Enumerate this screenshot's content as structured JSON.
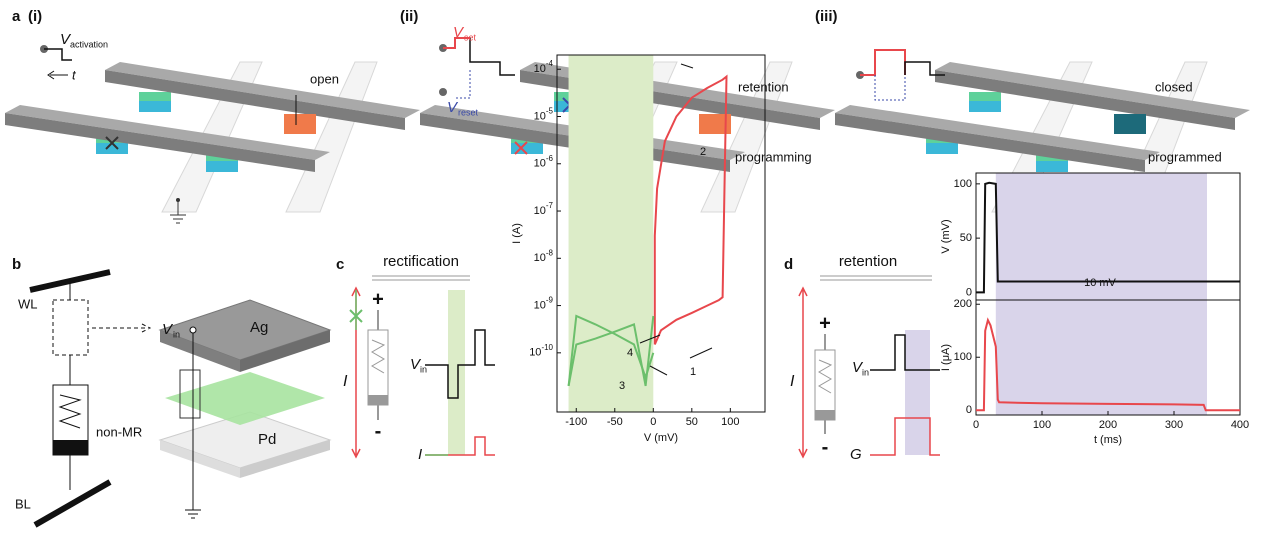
{
  "panel_a": {
    "label": "a",
    "subpanels": [
      "(i)",
      "(ii)",
      "(iii)"
    ],
    "v_activation": {
      "symbol": "V",
      "subscript": "activation"
    },
    "time": "t",
    "open": "open",
    "v_set": {
      "symbol": "V",
      "subscript": "set"
    },
    "v_reset": {
      "symbol": "V",
      "subscript": "reset"
    },
    "retention": "retention",
    "programming": "programming",
    "closed": "closed",
    "programmed": "programmed"
  },
  "panel_b": {
    "label": "b",
    "wl": "WL",
    "bl": "BL",
    "non_mr": "non-MR",
    "v_in": {
      "symbol": "V",
      "subscript": "in"
    },
    "top": "Ag",
    "bottom": "Pd"
  },
  "panel_c": {
    "label": "c",
    "title": "rectification",
    "plus": "+",
    "minus": "-",
    "current": "I",
    "v_in": {
      "symbol": "V",
      "subscript": "in"
    },
    "pulse_current": "I",
    "chart": {
      "type": "line",
      "log_y": true,
      "xlabel": "V (mV)",
      "ylabel": "I (A)",
      "xlim": [
        -125,
        145
      ],
      "ylim": [
        5.6e-12,
        0.0002
      ],
      "xticks": [
        -100,
        -50,
        0,
        50,
        100
      ],
      "yticks": [
        {
          "value": 1e-10,
          "label": "10^-10"
        },
        {
          "value": 1e-09,
          "label": "10^-9"
        },
        {
          "value": 1e-08,
          "label": "10^-8"
        },
        {
          "value": 1e-07,
          "label": "10^-7"
        },
        {
          "value": 1e-06,
          "label": "10^-6"
        },
        {
          "value": 1e-05,
          "label": "10^-5"
        },
        {
          "value": 0.0001,
          "label": "10^-4"
        }
      ],
      "shade": [
        -110,
        0
      ],
      "shade_color": "#dcecc8",
      "series": [
        {
          "color": "#e8474c",
          "x": [
            2,
            10,
            30,
            50,
            70,
            85,
            90,
            93,
            95,
            90,
            70,
            50,
            30,
            15,
            5,
            2,
            2
          ],
          "values": [
            1.5e-10,
            3e-10,
            5e-10,
            7e-10,
            1e-09,
            1.3e-09,
            1.5e-09,
            1e-06,
            7e-05,
            6e-05,
            4e-05,
            2.5e-05,
            1e-05,
            3e-06,
            3e-07,
            3e-08,
            1.5e-10
          ]
        },
        {
          "color": "#6cbf6c",
          "x": [
            -110,
            -100,
            -75,
            -50,
            -25,
            -10,
            0
          ],
          "values": [
            2e-11,
            6e-10,
            4e-10,
            2.5e-10,
            1.5e-10,
            3e-11,
            1e-10
          ]
        },
        {
          "color": "#6cbf6c",
          "x": [
            -110,
            -100,
            -75,
            -50,
            -25,
            -10,
            0
          ],
          "values": [
            2e-11,
            1.5e-10,
            2e-10,
            2.8e-10,
            4e-10,
            2e-11,
            6e-10
          ]
        }
      ],
      "annotations": [
        "1",
        "2",
        "3",
        "4"
      ]
    }
  },
  "panel_d": {
    "label": "d",
    "title": "retention",
    "plus": "+",
    "minus": "-",
    "current": "I",
    "v_in": {
      "symbol": "V",
      "subscript": "in"
    },
    "conductance": "G",
    "chart": {
      "type": "line",
      "xlabel": "t (ms)",
      "xlim": [
        0,
        400
      ],
      "xticks": [
        0,
        100,
        200,
        300,
        400
      ],
      "shade": [
        30,
        350
      ],
      "shade_color": "#d9d4ea",
      "subplots": [
        {
          "ylabel": "V (mV)",
          "ylim": [
            -7,
            110
          ],
          "yticks": [
            0,
            50,
            100
          ],
          "annotation": "10 mV",
          "series": [
            {
              "color": "#111111",
              "x": [
                0,
                12,
                14,
                20,
                30,
                33,
                35,
                100,
                200,
                300,
                400
              ],
              "values": [
                0,
                0,
                100,
                101,
                100,
                10,
                10,
                10,
                10,
                10,
                10
              ]
            }
          ]
        },
        {
          "ylabel": "I (μA)",
          "ylim": [
            -9,
            208
          ],
          "yticks": [
            0,
            100,
            200
          ],
          "series": [
            {
              "color": "#e8474c",
              "x": [
                0,
                12,
                14,
                18,
                22,
                30,
                33,
                35,
                100,
                200,
                300,
                345,
                348,
                400
              ],
              "values": [
                0,
                0,
                150,
                170,
                160,
                120,
                20,
                15,
                13,
                12,
                11,
                10,
                0,
                0
              ]
            }
          ]
        }
      ]
    }
  }
}
